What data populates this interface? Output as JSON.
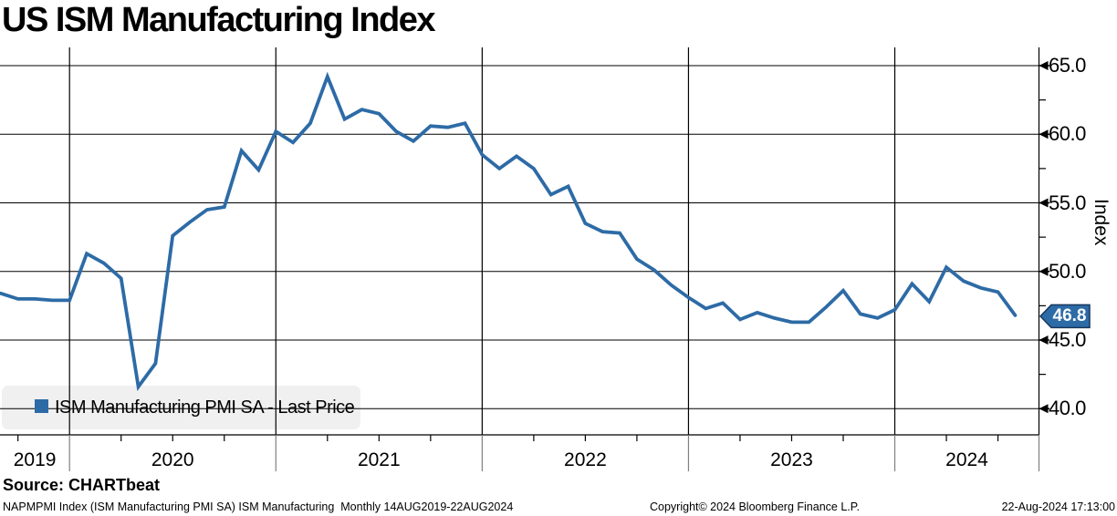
{
  "title": "US ISM Manufacturing Index",
  "source_line": "Source: CHARTbeat",
  "footer": {
    "left": "NAPMPMI Index (ISM Manufacturing PMI SA) ISM Manufacturing  Monthly 14AUG2019-22AUG2024",
    "center": "Copyright© 2024 Bloomberg Finance L.P.",
    "right": "22-Aug-2024 17:13:00"
  },
  "legend": {
    "label": "ISM Manufacturing PMI SA - Last Price"
  },
  "last_value_badge": "46.8",
  "chart_data": {
    "type": "line",
    "title": "US ISM Manufacturing Index",
    "ylabel": "Index",
    "ylim": [
      38.0,
      66.5
    ],
    "yticks": [
      65.0,
      60.0,
      55.0,
      50.0,
      45.0,
      40.0
    ],
    "ytick_labels": [
      "65.0",
      "60.0",
      "55.0",
      "50.0",
      "45.0",
      "40.0"
    ],
    "yticks_minor": [
      62.5,
      57.5,
      52.5,
      47.5,
      42.5
    ],
    "xtick_labels": [
      "2019",
      "2020",
      "2021",
      "2022",
      "2023",
      "2024"
    ],
    "grid": true,
    "legend_position": "bottom-left",
    "line_color": "#2d6ba6",
    "badge_border_color": "#17375e",
    "grid_color": "#000000",
    "separator_color": "#808080",
    "last_value": 46.8,
    "series": [
      {
        "name": "ISM Manufacturing PMI SA - Last Price",
        "x": [
          "2019-08",
          "2019-09",
          "2019-10",
          "2019-11",
          "2019-12",
          "2020-01",
          "2020-02",
          "2020-03",
          "2020-04",
          "2020-05",
          "2020-06",
          "2020-07",
          "2020-08",
          "2020-09",
          "2020-10",
          "2020-11",
          "2020-12",
          "2021-01",
          "2021-02",
          "2021-03",
          "2021-04",
          "2021-05",
          "2021-06",
          "2021-07",
          "2021-08",
          "2021-09",
          "2021-10",
          "2021-11",
          "2021-12",
          "2022-01",
          "2022-02",
          "2022-03",
          "2022-04",
          "2022-05",
          "2022-06",
          "2022-07",
          "2022-08",
          "2022-09",
          "2022-10",
          "2022-11",
          "2022-12",
          "2023-01",
          "2023-02",
          "2023-03",
          "2023-04",
          "2023-05",
          "2023-06",
          "2023-07",
          "2023-08",
          "2023-09",
          "2023-10",
          "2023-11",
          "2023-12",
          "2024-01",
          "2024-02",
          "2024-03",
          "2024-04",
          "2024-05",
          "2024-06",
          "2024-07"
        ],
        "values": [
          48.4,
          48.0,
          48.0,
          47.9,
          47.9,
          51.3,
          50.6,
          49.5,
          41.6,
          43.3,
          52.6,
          53.6,
          54.5,
          54.7,
          58.8,
          57.4,
          60.2,
          59.4,
          60.8,
          64.2,
          61.1,
          61.8,
          61.5,
          60.2,
          59.5,
          60.6,
          60.5,
          60.8,
          58.5,
          57.5,
          58.4,
          57.5,
          55.6,
          56.2,
          53.5,
          52.9,
          52.8,
          50.9,
          50.1,
          49.0,
          48.1,
          47.3,
          47.7,
          46.5,
          47.0,
          46.6,
          46.3,
          46.3,
          47.4,
          48.6,
          46.9,
          46.6,
          47.2,
          49.1,
          47.8,
          50.3,
          49.3,
          48.8,
          48.5,
          46.8
        ]
      }
    ]
  }
}
